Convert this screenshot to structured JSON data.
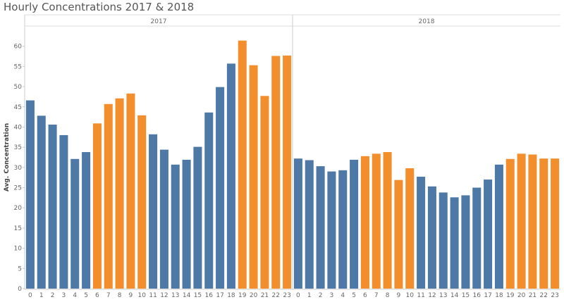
{
  "chart_data": {
    "type": "bar",
    "title": "Hourly Concentrations 2017 & 2018",
    "ylabel": "Avg. Concentration",
    "xlabel": "",
    "ylim": [
      0,
      65
    ],
    "yticks": [
      0,
      5,
      10,
      15,
      20,
      25,
      30,
      35,
      40,
      45,
      50,
      55,
      60
    ],
    "categories": [
      "0",
      "1",
      "2",
      "3",
      "4",
      "5",
      "6",
      "7",
      "8",
      "9",
      "10",
      "11",
      "12",
      "13",
      "14",
      "15",
      "16",
      "17",
      "18",
      "19",
      "20",
      "21",
      "22",
      "23"
    ],
    "grid": false,
    "colors": {
      "blue": "#4e79a7",
      "orange": "#f28e2b"
    },
    "panels": [
      {
        "name": "2017",
        "values": [
          46.6,
          42.8,
          40.6,
          38.0,
          32.1,
          33.8,
          40.9,
          45.7,
          47.1,
          48.3,
          42.9,
          38.2,
          34.4,
          30.7,
          31.9,
          35.1,
          43.6,
          49.9,
          55.7,
          61.4,
          55.3,
          47.7,
          57.6,
          57.7
        ],
        "colors": [
          "blue",
          "blue",
          "blue",
          "blue",
          "blue",
          "blue",
          "orange",
          "orange",
          "orange",
          "orange",
          "orange",
          "blue",
          "blue",
          "blue",
          "blue",
          "blue",
          "blue",
          "blue",
          "blue",
          "orange",
          "orange",
          "orange",
          "orange",
          "orange"
        ]
      },
      {
        "name": "2018",
        "values": [
          32.2,
          31.8,
          30.3,
          29.0,
          29.3,
          31.9,
          32.8,
          33.4,
          33.8,
          26.9,
          29.8,
          27.7,
          25.3,
          23.8,
          22.6,
          23.1,
          25.0,
          27.0,
          30.7,
          32.1,
          33.4,
          33.2,
          32.2,
          32.2
        ],
        "colors": [
          "blue",
          "blue",
          "blue",
          "blue",
          "blue",
          "blue",
          "orange",
          "orange",
          "orange",
          "orange",
          "orange",
          "blue",
          "blue",
          "blue",
          "blue",
          "blue",
          "blue",
          "blue",
          "blue",
          "orange",
          "orange",
          "orange",
          "orange",
          "orange"
        ]
      }
    ]
  }
}
